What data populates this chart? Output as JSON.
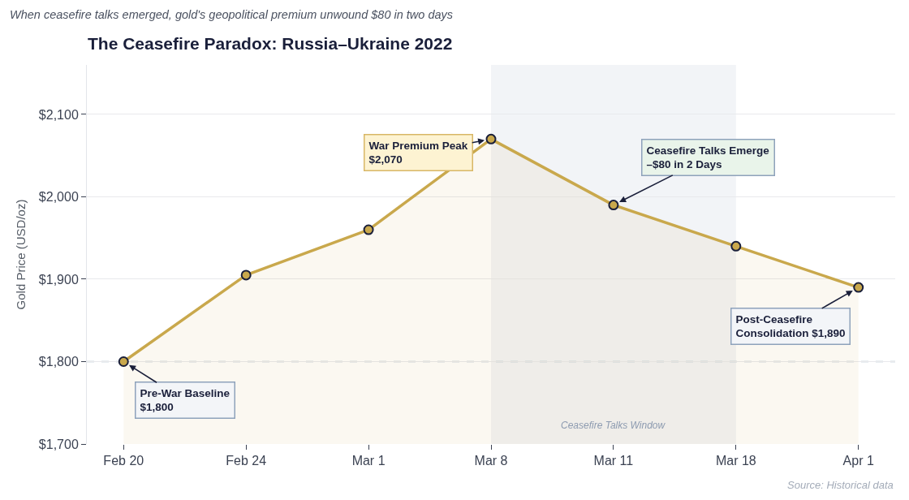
{
  "chart_data": {
    "type": "area",
    "title": "The Ceasefire Paradox: Russia–Ukraine 2022",
    "subtitle": "When ceasefire talks emerged, gold's geopolitical premium unwound $80 in two days",
    "ylabel": "Gold Price (USD/oz)",
    "categories": [
      "Feb 20",
      "Feb 24",
      "Mar 1",
      "Mar 8",
      "Mar 11",
      "Mar 18",
      "Apr 1"
    ],
    "series": [
      {
        "color": "#c9a84c",
        "values": [
          1800,
          1905,
          1960,
          2070,
          1990,
          1940,
          1890
        ]
      }
    ],
    "ylim": [
      1700,
      2160
    ],
    "yticks": [
      {
        "value": 1700,
        "label": "$1,700"
      },
      {
        "value": 1800,
        "label": "$1,800"
      },
      {
        "value": 1900,
        "label": "$1,900"
      },
      {
        "value": 2000,
        "label": "$2,000"
      },
      {
        "value": 2100,
        "label": "$2,100"
      }
    ],
    "grid": "y",
    "marker": "circle",
    "ref_lines": [
      {
        "axis": "y",
        "value": 1800,
        "color": "#a9b7c8",
        "line_style": "dashed"
      }
    ],
    "bands": [
      {
        "axis": "x",
        "from": "Mar 8",
        "to": "Mar 18",
        "label": "Ceasefire Talks Window",
        "color": "#f2f4f7"
      }
    ],
    "annotations": [
      {
        "text": "Pre-War Baseline\n$1,800",
        "x": "Feb 20",
        "y": 1800
      },
      {
        "text": "War Premium Peak\n$2,070",
        "x": "Mar 8",
        "y": 2070
      },
      {
        "text": "Ceasefire Talks Emerge\n–$80 in 2 Days",
        "x": "Mar 11",
        "y": 1990
      },
      {
        "text": "Post-Ceasefire\nConsolidation $1,890",
        "x": "Apr 1",
        "y": 1890
      },
      "Source: Historical data"
    ]
  }
}
